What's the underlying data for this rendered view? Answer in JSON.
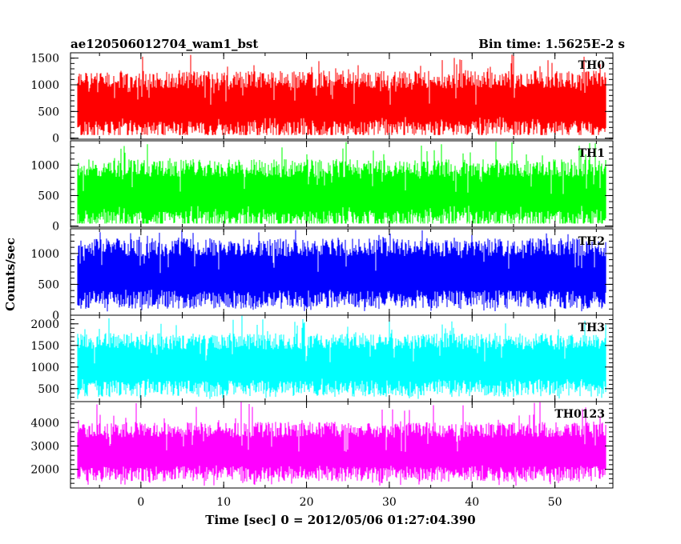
{
  "chart_data": {
    "type": "line",
    "title_left": "ae120506012704_wam1_bst",
    "title_right": "Bin time: 1.5625E-2 s",
    "xlabel": "Time [sec] 0 = 2012/05/06 01:27:04.390",
    "ylabel": "Counts/sec",
    "xlim": [
      -8.5,
      57
    ],
    "x_ticks": [
      "0",
      "10",
      "20",
      "30",
      "40",
      "50"
    ],
    "x_tick_values": [
      0,
      10,
      20,
      30,
      40,
      50
    ],
    "data_x_range": [
      -7.6,
      56.1
    ],
    "bin_time_s": 0.015625,
    "grid": false,
    "panels": [
      {
        "name": "TH0",
        "color": "#ff0000",
        "ylim": [
          -20,
          1600
        ],
        "y_ticks": [
          "0",
          "500",
          "1000",
          "1500"
        ],
        "y_tick_values": [
          0,
          500,
          1000,
          1500
        ],
        "typical_low": 150,
        "typical_high": 1100,
        "min": 60,
        "max": 1600
      },
      {
        "name": "TH1",
        "color": "#00ff00",
        "ylim": [
          -20,
          1400
        ],
        "y_ticks": [
          "0",
          "500",
          "1000"
        ],
        "y_tick_values": [
          0,
          500,
          1000
        ],
        "typical_low": 100,
        "typical_high": 950,
        "min": 40,
        "max": 1400
      },
      {
        "name": "TH2",
        "color": "#0000ff",
        "ylim": [
          0,
          1400
        ],
        "y_ticks": [
          "0",
          "500",
          "1000"
        ],
        "y_tick_values": [
          0,
          500,
          1000
        ],
        "typical_low": 250,
        "typical_high": 1100,
        "min": 60,
        "max": 1400
      },
      {
        "name": "TH3",
        "color": "#00ffff",
        "ylim": [
          200,
          2200
        ],
        "y_ticks": [
          "500",
          "1000",
          "1500",
          "2000"
        ],
        "y_tick_values": [
          500,
          1000,
          1500,
          2000
        ],
        "typical_low": 500,
        "typical_high": 1600,
        "min": 250,
        "max": 2200
      },
      {
        "name": "TH0123",
        "color": "#ff00ff",
        "ylim": [
          1200,
          4900
        ],
        "y_ticks": [
          "2000",
          "3000",
          "4000"
        ],
        "y_tick_values": [
          2000,
          3000,
          4000
        ],
        "typical_low": 1800,
        "typical_high": 3700,
        "min": 1300,
        "max": 4900
      }
    ]
  }
}
